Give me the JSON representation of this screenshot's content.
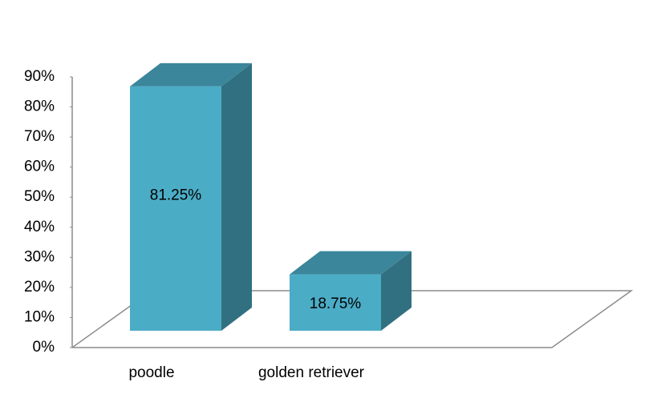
{
  "chart_data": {
    "type": "bar3d",
    "categories": [
      "poodle",
      "golden retriever"
    ],
    "values": [
      81.25,
      18.75
    ],
    "value_labels": [
      "81.25%",
      "18.75%"
    ],
    "color": "#4bacc6",
    "ylim": [
      0,
      90
    ],
    "yticks": [
      {
        "value": 0,
        "label": "0%"
      },
      {
        "value": 10,
        "label": "10%"
      },
      {
        "value": 20,
        "label": "20%"
      },
      {
        "value": 30,
        "label": "30%"
      },
      {
        "value": 40,
        "label": "40%"
      },
      {
        "value": 50,
        "label": "50%"
      },
      {
        "value": 60,
        "label": "60%"
      },
      {
        "value": 70,
        "label": "70%"
      },
      {
        "value": 80,
        "label": "80%"
      },
      {
        "value": 90,
        "label": "90%"
      }
    ]
  }
}
